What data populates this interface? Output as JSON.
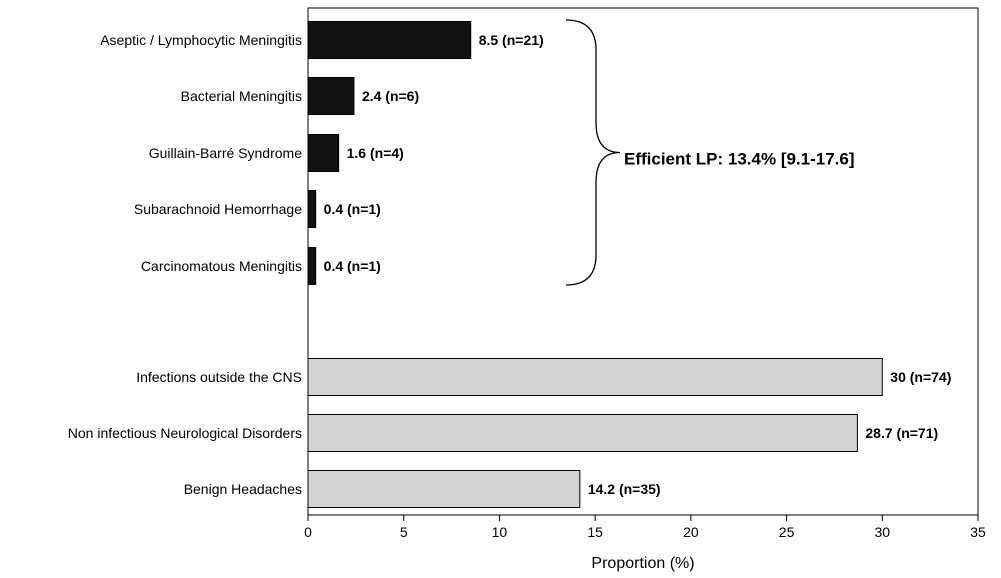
{
  "chart_data": {
    "type": "bar",
    "orientation": "horizontal",
    "categories": [
      "Aseptic / Lymphocytic Meningitis",
      "Bacterial Meningitis",
      "Guillain-Barré Syndrome",
      "Subarachnoid Hemorrhage",
      "Carcinomatous Meningitis",
      "Infections outside the CNS",
      "Non infectious Neurological Disorders",
      "Benign Headaches"
    ],
    "values": [
      8.5,
      2.4,
      1.6,
      0.4,
      0.4,
      30,
      28.7,
      14.2
    ],
    "data_labels": [
      "8.5 (n=21)",
      "2.4 (n=6)",
      "1.6 (n=4)",
      "0.4 (n=1)",
      "0.4 (n=1)",
      "30 (n=74)",
      "28.7 (n=71)",
      "14.2 (n=35)"
    ],
    "groups": [
      {
        "categories": [
          0,
          1,
          2,
          3,
          4
        ],
        "color": "#111111"
      },
      {
        "categories": [
          5,
          6,
          7
        ],
        "color": "#d3d3d3"
      }
    ],
    "xlabel": "Proportion (%)",
    "ylabel": "",
    "xlim": [
      0,
      35
    ],
    "xticks": [
      "0",
      "5",
      "10",
      "15",
      "20",
      "25",
      "30",
      "35"
    ],
    "grid": false,
    "legend": "none",
    "annotation": {
      "text": "Efficient LP: 13.4% [9.1-17.6]",
      "brace_spans_categories": [
        0,
        4
      ]
    }
  }
}
